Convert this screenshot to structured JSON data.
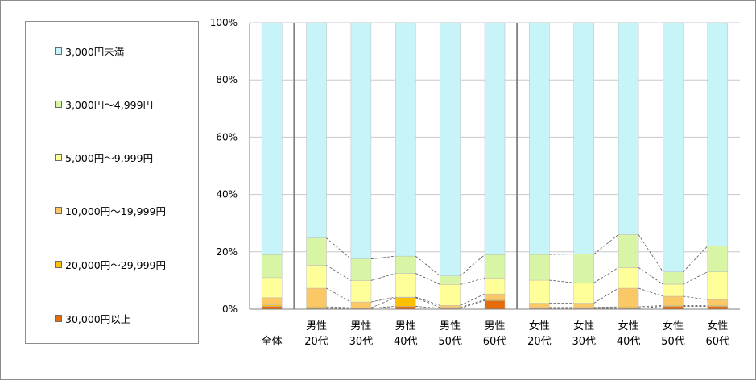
{
  "chart_data": {
    "type": "bar",
    "stacked": true,
    "percent": true,
    "categories": [
      [
        "全体"
      ],
      [
        "男性",
        "20代"
      ],
      [
        "男性",
        "30代"
      ],
      [
        "男性",
        "40代"
      ],
      [
        "男性",
        "50代"
      ],
      [
        "男性",
        "60代"
      ],
      [
        "女性",
        "20代"
      ],
      [
        "女性",
        "30代"
      ],
      [
        "女性",
        "40代"
      ],
      [
        "女性",
        "50代"
      ],
      [
        "女性",
        "60代"
      ]
    ],
    "y_ticks": [
      "0%",
      "20%",
      "40%",
      "60%",
      "80%",
      "100%"
    ],
    "ylim": [
      0,
      100
    ],
    "legend_position": "left",
    "group_separators_after": [
      0,
      5
    ],
    "series_lines": true,
    "series": [
      {
        "name": "30,000円以上",
        "color": "#e46c0a",
        "values": [
          1.0,
          0.3,
          0.3,
          1.0,
          0.3,
          3.0,
          0.3,
          0.3,
          0.3,
          1.0,
          1.0
        ]
      },
      {
        "name": "20,000円～29,999円",
        "color": "#ffc000",
        "values": [
          0.5,
          0.5,
          0.2,
          3.0,
          0.3,
          0.3,
          0.3,
          0.3,
          0.5,
          0.3,
          0.3
        ]
      },
      {
        "name": "10,000円～19,999円",
        "color": "#fac864",
        "values": [
          2.5,
          6.5,
          2.0,
          0.2,
          0.7,
          2.0,
          1.5,
          1.5,
          6.5,
          3.2,
          2.0
        ]
      },
      {
        "name": "5,000円～9,999円",
        "color": "#ffff99",
        "values": [
          7.0,
          8.0,
          7.5,
          8.3,
          7.3,
          5.5,
          8.0,
          7.1,
          7.2,
          4.2,
          9.7
        ]
      },
      {
        "name": "3,000円～4,999円",
        "color": "#d7f5a5",
        "values": [
          8.0,
          9.5,
          7.5,
          6.0,
          3.0,
          8.2,
          9.0,
          10.0,
          11.5,
          4.3,
          9.0
        ]
      },
      {
        "name": "3,000円未満",
        "color": "#c6f4f8",
        "values": [
          81.0,
          75.2,
          82.5,
          81.5,
          88.4,
          81.0,
          80.9,
          80.8,
          74.0,
          87.0,
          78.0
        ]
      }
    ]
  }
}
